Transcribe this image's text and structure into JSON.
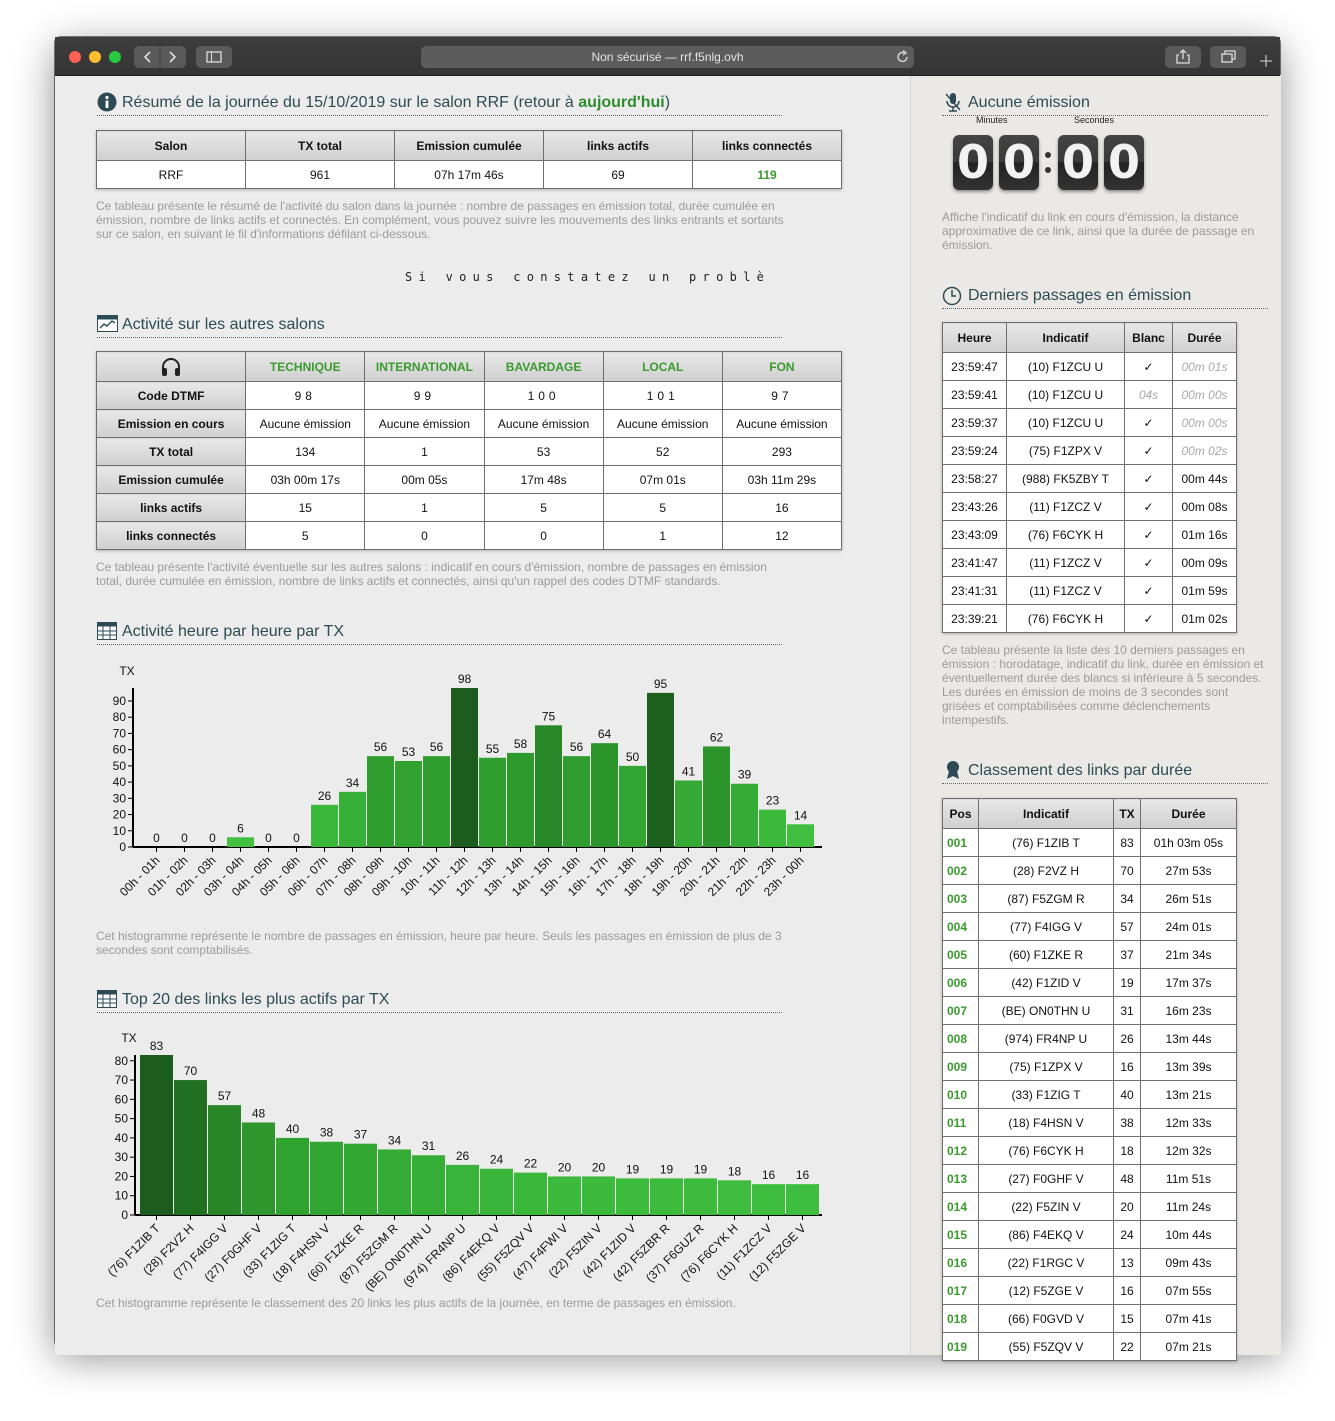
{
  "browser": {
    "address": "Non sécurisé — rrf.f5nlg.ovh"
  },
  "summary": {
    "title": "Résumé de la journée du 15/10/2019 sur le salon RRF (retour à",
    "link": "aujourd'hui",
    "title_end": ")",
    "table": {
      "headers": [
        "Salon",
        "TX total",
        "Emission cumulée",
        "links actifs",
        "links connectés"
      ],
      "row": [
        "RRF",
        "961",
        "07h 17m 46s",
        "69",
        "119"
      ]
    },
    "description": "Ce tableau présente le résumé de l'activité du salon dans la journée : nombre de passages en émission total, durée cumulée en émission, nombre de links actifs et connectés. En complément, vous pouvez suivre les mouvements des links entrants et sortants sur ce salon, en suivant le fil d'informations défilant ci-dessous."
  },
  "marquee": "Si vous constatez un problè",
  "salons": {
    "title": "Activité sur les autres salons",
    "columns": [
      "TECHNIQUE",
      "INTERNATIONAL",
      "BAVARDAGE",
      "LOCAL",
      "FON"
    ],
    "rows": [
      {
        "label": "Code DTMF",
        "cells": [
          "98",
          "99",
          "100",
          "101",
          "97"
        ]
      },
      {
        "label": "Emission en cours",
        "cells": [
          "Aucune émission",
          "Aucune émission",
          "Aucune émission",
          "Aucune émission",
          "Aucune émission"
        ]
      },
      {
        "label": "TX total",
        "cells": [
          "134",
          "1",
          "53",
          "52",
          "293"
        ]
      },
      {
        "label": "Emission cumulée",
        "cells": [
          "03h 00m 17s",
          "00m 05s",
          "17m 48s",
          "07m 01s",
          "03h 11m 29s"
        ]
      },
      {
        "label": "links actifs",
        "cells": [
          "15",
          "1",
          "5",
          "5",
          "16"
        ]
      },
      {
        "label": "links connectés",
        "cells": [
          "5",
          "0",
          "0",
          "1",
          "12"
        ]
      }
    ],
    "description": "Ce tableau présente l'activité éventuelle sur les autres salons : indicatif en cours d'émission, nombre de passages en émission total, durée cumulée en émission, nombre de links actifs et connectés, ainsi qu'un rappel des codes DTMF standards."
  },
  "hourly": {
    "title": "Activité heure par heure par TX",
    "chart_data": {
      "type": "bar",
      "y_label": "TX",
      "categories": [
        "00h - 01h",
        "01h - 02h",
        "02h - 03h",
        "03h - 04h",
        "04h - 05h",
        "05h - 06h",
        "06h - 07h",
        "07h - 08h",
        "08h - 09h",
        "09h - 10h",
        "10h - 11h",
        "11h - 12h",
        "12h - 13h",
        "13h - 14h",
        "14h - 15h",
        "15h - 16h",
        "16h - 17h",
        "17h - 18h",
        "18h - 19h",
        "19h - 20h",
        "20h - 21h",
        "21h - 22h",
        "22h - 23h",
        "23h - 00h"
      ],
      "values": [
        0,
        0,
        0,
        6,
        0,
        0,
        26,
        34,
        56,
        53,
        56,
        98,
        55,
        58,
        75,
        56,
        64,
        50,
        95,
        41,
        62,
        39,
        23,
        14
      ],
      "colors": [
        "#42c042",
        "#42c042",
        "#42c042",
        "#42c042",
        "#42c042",
        "#42c042",
        "#3ab83a",
        "#36b036",
        "#2f9e2f",
        "#31a231",
        "#2f9e2f",
        "#1c5c1c",
        "#309f30",
        "#2e9a2e",
        "#288828",
        "#2f9e2f",
        "#2b942b",
        "#32a432",
        "#1d601d",
        "#34aa34",
        "#2c962c",
        "#35ac35",
        "#3bba3b",
        "#3fbe3f"
      ],
      "ylim": [
        0,
        98
      ],
      "yticks": [
        0,
        10,
        20,
        30,
        40,
        50,
        60,
        70,
        80,
        90
      ]
    },
    "description": "Cet histogramme représente le nombre de passages en émission, heure par heure. Seuls les passages en émission de plus de 3 secondes sont comptabilisés."
  },
  "top": {
    "title": "Top 20 des links les plus actifs par TX",
    "chart_data": {
      "type": "bar",
      "y_label": "TX",
      "categories": [
        "(76) F1ZIB T",
        "(28) F2VZ H",
        "(77) F4IGG V",
        "(27) F0GHF V",
        "(33) F1ZIG T",
        "(18) F4HSN V",
        "(60) F1ZKE R",
        "(87) F5ZGM R",
        "(BE) ON0THN U",
        "(974) FR4NP U",
        "(86) F4EKQ V",
        "(55) F5ZQV V",
        "(47) F4FWI V",
        "(22) F5ZIN V",
        "(42) F1ZID V",
        "(42) F5ZBR R",
        "(37) F6GUZ R",
        "(76) F6CYK H",
        "(11) F1ZCZ V",
        "(12) F5ZGE V"
      ],
      "values": [
        83,
        70,
        57,
        48,
        40,
        38,
        37,
        34,
        31,
        26,
        24,
        22,
        20,
        20,
        19,
        19,
        19,
        18,
        16,
        16
      ],
      "colors": [
        "#1c5c1c",
        "#217021",
        "#288628",
        "#2d962d",
        "#31a331",
        "#32a632",
        "#33a833",
        "#34ab34",
        "#36af36",
        "#38b438",
        "#39b639",
        "#3ab83a",
        "#3bba3b",
        "#3bba3b",
        "#3cbb3c",
        "#3cbb3c",
        "#3cbb3c",
        "#3dbc3d",
        "#3ebe3e",
        "#3ebe3e"
      ],
      "ylim": [
        0,
        83
      ],
      "yticks": [
        0,
        10,
        20,
        30,
        40,
        50,
        60,
        70,
        80
      ]
    },
    "description": "Cet histogramme représente le classement des 20 links les plus actifs de la journée, en terme de passages en émission."
  },
  "current": {
    "title": "Aucune émission",
    "minutes_label": "Minutes",
    "seconds_label": "Secondes",
    "digits": [
      "0",
      "0",
      "0",
      "0"
    ],
    "description": "Affiche l'indicatif du link en cours d'émission, la distance approximative de ce link, ainsi que la durée de passage en émission."
  },
  "last": {
    "title": "Derniers passages en émission",
    "headers": [
      "Heure",
      "Indicatif",
      "Blanc",
      "Durée"
    ],
    "rows": [
      [
        "23:59:47",
        "(10) F1ZCU U",
        "✓",
        "00m 01s"
      ],
      [
        "23:59:41",
        "(10) F1ZCU U",
        "04s",
        "00m 00s"
      ],
      [
        "23:59:37",
        "(10) F1ZCU U",
        "✓",
        "00m 00s"
      ],
      [
        "23:59:24",
        "(75) F1ZPX V",
        "✓",
        "00m 02s"
      ],
      [
        "23:58:27",
        "(988) FK5ZBY T",
        "✓",
        "00m 44s"
      ],
      [
        "23:43:26",
        "(11) F1ZCZ V",
        "✓",
        "00m 08s"
      ],
      [
        "23:43:09",
        "(76) F6CYK H",
        "✓",
        "01m 16s"
      ],
      [
        "23:41:47",
        "(11) F1ZCZ V",
        "✓",
        "00m 09s"
      ],
      [
        "23:41:31",
        "(11) F1ZCZ V",
        "✓",
        "01m 59s"
      ],
      [
        "23:39:21",
        "(76) F6CYK H",
        "✓",
        "01m 02s"
      ]
    ],
    "description": "Ce tableau présente la liste des 10 derniers passages en émission : horodatage, indicatif du link, durée en émission et éventuellement durée des blancs si inférieure à 5 secondes. Les durées en émission de moins de 3 secondes sont grisées et comptabilisées comme déclenchements intempestifs."
  },
  "rank": {
    "title": "Classement des links par durée",
    "headers": [
      "Pos",
      "Indicatif",
      "TX",
      "Durée"
    ],
    "rows": [
      [
        "001",
        "(76) F1ZIB T",
        "83",
        "01h 03m 05s"
      ],
      [
        "002",
        "(28) F2VZ H",
        "70",
        "27m 53s"
      ],
      [
        "003",
        "(87) F5ZGM R",
        "34",
        "26m 51s"
      ],
      [
        "004",
        "(77) F4IGG V",
        "57",
        "24m 01s"
      ],
      [
        "005",
        "(60) F1ZKE R",
        "37",
        "21m 34s"
      ],
      [
        "006",
        "(42) F1ZID V",
        "19",
        "17m 37s"
      ],
      [
        "007",
        "(BE) ON0THN U",
        "31",
        "16m 23s"
      ],
      [
        "008",
        "(974) FR4NP U",
        "26",
        "13m 44s"
      ],
      [
        "009",
        "(75) F1ZPX V",
        "16",
        "13m 39s"
      ],
      [
        "010",
        "(33) F1ZIG T",
        "40",
        "13m 21s"
      ],
      [
        "011",
        "(18) F4HSN V",
        "38",
        "12m 33s"
      ],
      [
        "012",
        "(76) F6CYK H",
        "18",
        "12m 32s"
      ],
      [
        "013",
        "(27) F0GHF V",
        "48",
        "11m 51s"
      ],
      [
        "014",
        "(22) F5ZIN V",
        "20",
        "11m 24s"
      ],
      [
        "015",
        "(86) F4EKQ V",
        "24",
        "10m 44s"
      ],
      [
        "016",
        "(22) F1RGC V",
        "13",
        "09m 43s"
      ],
      [
        "017",
        "(12) F5ZGE V",
        "16",
        "07m 55s"
      ],
      [
        "018",
        "(66) F0GVD V",
        "15",
        "07m 41s"
      ],
      [
        "019",
        "(55) F5ZQV V",
        "22",
        "07m 21s"
      ]
    ]
  }
}
